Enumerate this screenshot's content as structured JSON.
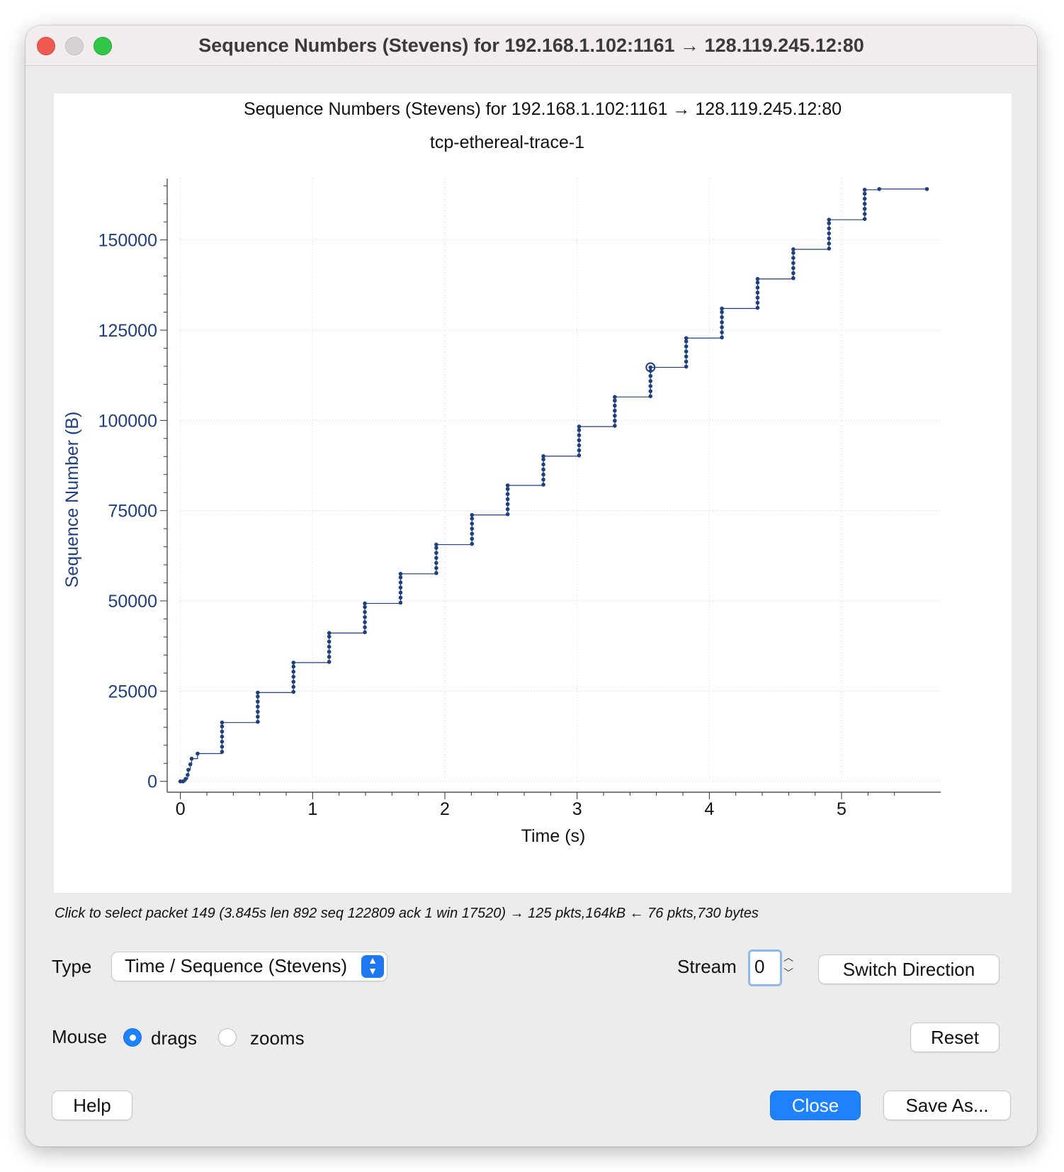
{
  "window": {
    "title": "Sequence Numbers (Stevens) for 192.168.1.102:1161 → 128.119.245.12:80"
  },
  "chart_data": {
    "type": "scatter",
    "title": "Sequence Numbers (Stevens) for 192.168.1.102:1161 → 128.119.245.12:80",
    "subtitle": "tcp-ethereal-trace-1",
    "xlabel": "Time (s)",
    "ylabel": "Sequence Number (B)",
    "xlim": [
      -0.1,
      5.75
    ],
    "ylim": [
      -3000,
      167000
    ],
    "xticks": [
      "0",
      "1",
      "2",
      "3",
      "4",
      "5"
    ],
    "yticks": [
      "0",
      "25000",
      "50000",
      "75000",
      "100000",
      "125000",
      "150000"
    ],
    "grid": true,
    "color": "#1f3f7f",
    "series": [
      {
        "points": [
          {
            "x": 0.0,
            "y": 0
          },
          {
            "x": 0.02,
            "y": 0
          },
          {
            "x": 0.04,
            "y": 700
          },
          {
            "x": 0.055,
            "y": 1800
          },
          {
            "x": 0.06,
            "y": 3200
          },
          {
            "x": 0.075,
            "y": 4700
          },
          {
            "x": 0.085,
            "y": 6300
          },
          {
            "x": 0.13,
            "y": 7700
          },
          {
            "x": 0.315,
            "y": 8200
          },
          {
            "x": 0.315,
            "y": 9600
          },
          {
            "x": 0.315,
            "y": 11000
          },
          {
            "x": 0.315,
            "y": 12400
          },
          {
            "x": 0.315,
            "y": 13800
          },
          {
            "x": 0.315,
            "y": 15200
          },
          {
            "x": 0.315,
            "y": 16300
          },
          {
            "x": 0.585,
            "y": 16500
          },
          {
            "x": 0.585,
            "y": 17900
          },
          {
            "x": 0.585,
            "y": 19300
          },
          {
            "x": 0.585,
            "y": 20700
          },
          {
            "x": 0.585,
            "y": 22100
          },
          {
            "x": 0.585,
            "y": 23500
          },
          {
            "x": 0.585,
            "y": 24600
          },
          {
            "x": 0.855,
            "y": 24800
          },
          {
            "x": 0.855,
            "y": 26200
          },
          {
            "x": 0.855,
            "y": 27600
          },
          {
            "x": 0.855,
            "y": 29000
          },
          {
            "x": 0.855,
            "y": 30400
          },
          {
            "x": 0.855,
            "y": 31800
          },
          {
            "x": 0.855,
            "y": 32900
          },
          {
            "x": 1.125,
            "y": 33100
          },
          {
            "x": 1.125,
            "y": 34500
          },
          {
            "x": 1.125,
            "y": 35900
          },
          {
            "x": 1.125,
            "y": 37300
          },
          {
            "x": 1.125,
            "y": 38700
          },
          {
            "x": 1.125,
            "y": 40100
          },
          {
            "x": 1.125,
            "y": 41100
          },
          {
            "x": 1.395,
            "y": 41300
          },
          {
            "x": 1.395,
            "y": 42700
          },
          {
            "x": 1.395,
            "y": 44100
          },
          {
            "x": 1.395,
            "y": 45500
          },
          {
            "x": 1.395,
            "y": 46900
          },
          {
            "x": 1.395,
            "y": 48300
          },
          {
            "x": 1.395,
            "y": 49300
          },
          {
            "x": 1.665,
            "y": 49500
          },
          {
            "x": 1.665,
            "y": 50900
          },
          {
            "x": 1.665,
            "y": 52300
          },
          {
            "x": 1.665,
            "y": 53700
          },
          {
            "x": 1.665,
            "y": 55100
          },
          {
            "x": 1.665,
            "y": 56500
          },
          {
            "x": 1.665,
            "y": 57500
          },
          {
            "x": 1.935,
            "y": 57700
          },
          {
            "x": 1.935,
            "y": 59100
          },
          {
            "x": 1.935,
            "y": 60500
          },
          {
            "x": 1.935,
            "y": 61900
          },
          {
            "x": 1.935,
            "y": 63300
          },
          {
            "x": 1.935,
            "y": 64700
          },
          {
            "x": 1.935,
            "y": 65600
          },
          {
            "x": 2.205,
            "y": 65800
          },
          {
            "x": 2.205,
            "y": 67200
          },
          {
            "x": 2.205,
            "y": 68600
          },
          {
            "x": 2.205,
            "y": 70000
          },
          {
            "x": 2.205,
            "y": 71400
          },
          {
            "x": 2.205,
            "y": 72800
          },
          {
            "x": 2.205,
            "y": 73800
          },
          {
            "x": 2.475,
            "y": 74000
          },
          {
            "x": 2.475,
            "y": 75400
          },
          {
            "x": 2.475,
            "y": 76800
          },
          {
            "x": 2.475,
            "y": 78200
          },
          {
            "x": 2.475,
            "y": 79600
          },
          {
            "x": 2.475,
            "y": 81000
          },
          {
            "x": 2.475,
            "y": 82000
          },
          {
            "x": 2.745,
            "y": 82200
          },
          {
            "x": 2.745,
            "y": 83600
          },
          {
            "x": 2.745,
            "y": 85000
          },
          {
            "x": 2.745,
            "y": 86400
          },
          {
            "x": 2.745,
            "y": 87800
          },
          {
            "x": 2.745,
            "y": 89200
          },
          {
            "x": 2.745,
            "y": 90100
          },
          {
            "x": 3.015,
            "y": 90300
          },
          {
            "x": 3.015,
            "y": 91700
          },
          {
            "x": 3.015,
            "y": 93100
          },
          {
            "x": 3.015,
            "y": 94500
          },
          {
            "x": 3.015,
            "y": 95900
          },
          {
            "x": 3.015,
            "y": 97300
          },
          {
            "x": 3.015,
            "y": 98300
          },
          {
            "x": 3.285,
            "y": 98500
          },
          {
            "x": 3.285,
            "y": 99900
          },
          {
            "x": 3.285,
            "y": 101300
          },
          {
            "x": 3.285,
            "y": 102700
          },
          {
            "x": 3.285,
            "y": 104100
          },
          {
            "x": 3.285,
            "y": 105500
          },
          {
            "x": 3.285,
            "y": 106500
          },
          {
            "x": 3.555,
            "y": 106700
          },
          {
            "x": 3.555,
            "y": 108100
          },
          {
            "x": 3.555,
            "y": 109500
          },
          {
            "x": 3.555,
            "y": 110900
          },
          {
            "x": 3.555,
            "y": 112300
          },
          {
            "x": 3.555,
            "y": 113700
          },
          {
            "x": 3.555,
            "y": 114700
          },
          {
            "x": 3.825,
            "y": 114900
          },
          {
            "x": 3.825,
            "y": 116300
          },
          {
            "x": 3.825,
            "y": 117700
          },
          {
            "x": 3.825,
            "y": 119100
          },
          {
            "x": 3.825,
            "y": 120500
          },
          {
            "x": 3.825,
            "y": 121900
          },
          {
            "x": 3.825,
            "y": 122800
          },
          {
            "x": 4.095,
            "y": 123000
          },
          {
            "x": 4.095,
            "y": 124400
          },
          {
            "x": 4.095,
            "y": 125800
          },
          {
            "x": 4.095,
            "y": 127200
          },
          {
            "x": 4.095,
            "y": 128600
          },
          {
            "x": 4.095,
            "y": 130000
          },
          {
            "x": 4.095,
            "y": 131000
          },
          {
            "x": 4.365,
            "y": 131200
          },
          {
            "x": 4.365,
            "y": 132600
          },
          {
            "x": 4.365,
            "y": 134000
          },
          {
            "x": 4.365,
            "y": 135400
          },
          {
            "x": 4.365,
            "y": 136800
          },
          {
            "x": 4.365,
            "y": 138200
          },
          {
            "x": 4.365,
            "y": 139200
          },
          {
            "x": 4.635,
            "y": 139400
          },
          {
            "x": 4.635,
            "y": 140800
          },
          {
            "x": 4.635,
            "y": 142200
          },
          {
            "x": 4.635,
            "y": 143600
          },
          {
            "x": 4.635,
            "y": 145000
          },
          {
            "x": 4.635,
            "y": 146400
          },
          {
            "x": 4.635,
            "y": 147400
          },
          {
            "x": 4.905,
            "y": 147600
          },
          {
            "x": 4.905,
            "y": 149000
          },
          {
            "x": 4.905,
            "y": 150400
          },
          {
            "x": 4.905,
            "y": 151800
          },
          {
            "x": 4.905,
            "y": 153200
          },
          {
            "x": 4.905,
            "y": 154600
          },
          {
            "x": 4.905,
            "y": 155600
          },
          {
            "x": 5.175,
            "y": 155800
          },
          {
            "x": 5.175,
            "y": 157200
          },
          {
            "x": 5.175,
            "y": 158600
          },
          {
            "x": 5.175,
            "y": 160000
          },
          {
            "x": 5.175,
            "y": 161400
          },
          {
            "x": 5.175,
            "y": 162800
          },
          {
            "x": 5.175,
            "y": 163900
          },
          {
            "x": 5.285,
            "y": 164100
          },
          {
            "x": 5.645,
            "y": 164100
          }
        ]
      }
    ],
    "selected_point": {
      "x": 3.555,
      "y": 114700
    }
  },
  "status_hint": "Click to select packet 149 (3.845s len 892 seq 122809 ack 1 win 17520) → 125 pkts,164kB ← 76 pkts,730 bytes",
  "controls": {
    "type_label": "Type",
    "type_value": "Time / Sequence (Stevens)",
    "stream_label": "Stream",
    "stream_value": "0",
    "switch_direction": "Switch Direction",
    "mouse_label": "Mouse",
    "radio_drags": "drags",
    "radio_zooms": "zooms",
    "mouse_mode": "drags",
    "reset": "Reset",
    "help": "Help",
    "close": "Close",
    "save_as": "Save As..."
  }
}
